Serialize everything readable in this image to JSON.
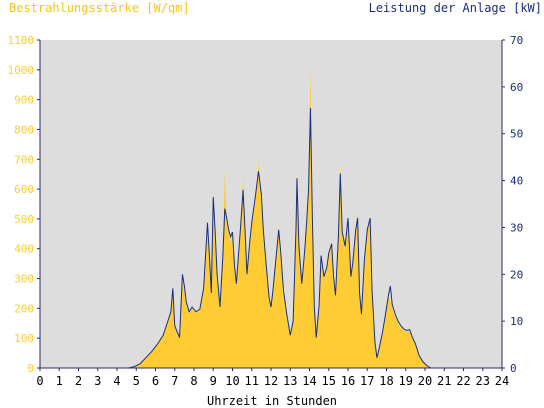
{
  "chart_data": {
    "type": "area",
    "title": "",
    "left_axis_title": "Bestrahlungsstärke [W/qm]",
    "right_axis_title": "Leistung der Anlage [kW]",
    "xlabel": "Uhrzeit in Stunden",
    "x_ticks": [
      "0",
      "1",
      "2",
      "3",
      "4",
      "5",
      "6",
      "7",
      "8",
      "9",
      "10",
      "11",
      "12",
      "13",
      "14",
      "15",
      "16",
      "17",
      "18",
      "19",
      "20",
      "21",
      "22",
      "23",
      "24"
    ],
    "xlim": [
      0,
      24
    ],
    "y_left_ticks": [
      "0",
      "100",
      "200",
      "300",
      "400",
      "500",
      "600",
      "700",
      "800",
      "900",
      "1000",
      "1100"
    ],
    "ylim_left": [
      0,
      1100
    ],
    "y_right_ticks": [
      "0",
      "10",
      "20",
      "30",
      "40",
      "50",
      "60",
      "70"
    ],
    "ylim_right": [
      0,
      70
    ],
    "grid": false,
    "series": [
      {
        "name": "Bestrahlungsstärke [W/qm]",
        "axis": "left",
        "color": "#ffcc33",
        "style": "filled-area",
        "points": [
          [
            0,
            0
          ],
          [
            4.6,
            0
          ],
          [
            4.9,
            5
          ],
          [
            5.2,
            15
          ],
          [
            5.5,
            35
          ],
          [
            5.8,
            55
          ],
          [
            6.1,
            80
          ],
          [
            6.4,
            110
          ],
          [
            6.6,
            150
          ],
          [
            6.8,
            190
          ],
          [
            6.9,
            255
          ],
          [
            7.0,
            140
          ],
          [
            7.1,
            120
          ],
          [
            7.25,
            100
          ],
          [
            7.4,
            290
          ],
          [
            7.5,
            255
          ],
          [
            7.6,
            210
          ],
          [
            7.75,
            180
          ],
          [
            7.9,
            200
          ],
          [
            8.1,
            185
          ],
          [
            8.3,
            190
          ],
          [
            8.5,
            260
          ],
          [
            8.7,
            470
          ],
          [
            8.8,
            360
          ],
          [
            8.9,
            250
          ],
          [
            9.0,
            580
          ],
          [
            9.1,
            450
          ],
          [
            9.2,
            300
          ],
          [
            9.35,
            200
          ],
          [
            9.5,
            380
          ],
          [
            9.6,
            660
          ],
          [
            9.7,
            500
          ],
          [
            9.8,
            450
          ],
          [
            9.9,
            420
          ],
          [
            10.0,
            460
          ],
          [
            10.1,
            340
          ],
          [
            10.2,
            280
          ],
          [
            10.4,
            450
          ],
          [
            10.55,
            640
          ],
          [
            10.65,
            450
          ],
          [
            10.75,
            300
          ],
          [
            10.9,
            420
          ],
          [
            11.0,
            480
          ],
          [
            11.2,
            560
          ],
          [
            11.35,
            690
          ],
          [
            11.5,
            560
          ],
          [
            11.6,
            450
          ],
          [
            11.75,
            340
          ],
          [
            11.9,
            230
          ],
          [
            12.0,
            200
          ],
          [
            12.1,
            250
          ],
          [
            12.25,
            350
          ],
          [
            12.4,
            470
          ],
          [
            12.5,
            380
          ],
          [
            12.65,
            250
          ],
          [
            12.8,
            180
          ],
          [
            13.0,
            110
          ],
          [
            13.15,
            160
          ],
          [
            13.3,
            460
          ],
          [
            13.35,
            640
          ],
          [
            13.45,
            400
          ],
          [
            13.6,
            280
          ],
          [
            13.75,
            380
          ],
          [
            13.85,
            480
          ],
          [
            13.95,
            600
          ],
          [
            14.05,
            1010
          ],
          [
            14.15,
            500
          ],
          [
            14.25,
            200
          ],
          [
            14.35,
            100
          ],
          [
            14.5,
            210
          ],
          [
            14.6,
            370
          ],
          [
            14.75,
            300
          ],
          [
            14.9,
            330
          ],
          [
            15.0,
            380
          ],
          [
            15.15,
            410
          ],
          [
            15.25,
            300
          ],
          [
            15.35,
            240
          ],
          [
            15.5,
            440
          ],
          [
            15.6,
            690
          ],
          [
            15.7,
            450
          ],
          [
            15.85,
            400
          ],
          [
            16.0,
            500
          ],
          [
            16.15,
            300
          ],
          [
            16.25,
            350
          ],
          [
            16.4,
            460
          ],
          [
            16.5,
            530
          ],
          [
            16.6,
            250
          ],
          [
            16.7,
            180
          ],
          [
            16.85,
            360
          ],
          [
            17.0,
            460
          ],
          [
            17.15,
            500
          ],
          [
            17.25,
            260
          ],
          [
            17.4,
            90
          ],
          [
            17.5,
            35
          ],
          [
            17.6,
            60
          ],
          [
            17.8,
            120
          ],
          [
            17.95,
            180
          ],
          [
            18.1,
            240
          ],
          [
            18.2,
            230
          ],
          [
            18.3,
            200
          ],
          [
            18.45,
            175
          ],
          [
            18.6,
            150
          ],
          [
            18.75,
            135
          ],
          [
            18.9,
            125
          ],
          [
            19.05,
            120
          ],
          [
            19.2,
            125
          ],
          [
            19.35,
            100
          ],
          [
            19.5,
            80
          ],
          [
            19.7,
            40
          ],
          [
            19.9,
            20
          ],
          [
            20.1,
            8
          ],
          [
            20.3,
            0
          ],
          [
            24,
            0
          ]
        ]
      },
      {
        "name": "Leistung der Anlage [kW]",
        "axis": "right",
        "color": "#1a2f7a",
        "style": "line",
        "points": [
          [
            0,
            0
          ],
          [
            4.6,
            0
          ],
          [
            4.9,
            0.3
          ],
          [
            5.2,
            0.9
          ],
          [
            5.5,
            2.2
          ],
          [
            5.8,
            3.5
          ],
          [
            6.1,
            5.1
          ],
          [
            6.4,
            7.0
          ],
          [
            6.6,
            9.5
          ],
          [
            6.8,
            12.0
          ],
          [
            6.9,
            17.0
          ],
          [
            7.0,
            9.0
          ],
          [
            7.1,
            8.0
          ],
          [
            7.25,
            6.5
          ],
          [
            7.4,
            20.0
          ],
          [
            7.5,
            17.5
          ],
          [
            7.6,
            14.0
          ],
          [
            7.75,
            12.0
          ],
          [
            7.9,
            13.0
          ],
          [
            8.1,
            12.0
          ],
          [
            8.3,
            12.5
          ],
          [
            8.5,
            17.0
          ],
          [
            8.7,
            31.0
          ],
          [
            8.8,
            24.0
          ],
          [
            8.9,
            16.0
          ],
          [
            9.0,
            36.5
          ],
          [
            9.1,
            29.0
          ],
          [
            9.2,
            20.0
          ],
          [
            9.35,
            13.0
          ],
          [
            9.5,
            24.0
          ],
          [
            9.6,
            34.0
          ],
          [
            9.7,
            32.0
          ],
          [
            9.8,
            29.5
          ],
          [
            9.9,
            28.0
          ],
          [
            10.0,
            29.0
          ],
          [
            10.1,
            22.0
          ],
          [
            10.2,
            18.0
          ],
          [
            10.4,
            29.0
          ],
          [
            10.55,
            38.0
          ],
          [
            10.65,
            29.5
          ],
          [
            10.75,
            20.0
          ],
          [
            10.9,
            27.0
          ],
          [
            11.0,
            31.0
          ],
          [
            11.2,
            37.0
          ],
          [
            11.35,
            42.0
          ],
          [
            11.5,
            37.0
          ],
          [
            11.6,
            29.5
          ],
          [
            11.75,
            22.0
          ],
          [
            11.9,
            15.0
          ],
          [
            12.0,
            13.0
          ],
          [
            12.1,
            16.5
          ],
          [
            12.25,
            23.0
          ],
          [
            12.4,
            29.5
          ],
          [
            12.5,
            25.0
          ],
          [
            12.65,
            16.5
          ],
          [
            12.8,
            12.0
          ],
          [
            13.0,
            7.0
          ],
          [
            13.15,
            10.0
          ],
          [
            13.3,
            30.0
          ],
          [
            13.35,
            40.5
          ],
          [
            13.45,
            26.0
          ],
          [
            13.6,
            18.0
          ],
          [
            13.75,
            25.0
          ],
          [
            13.85,
            31.0
          ],
          [
            13.95,
            38.0
          ],
          [
            14.05,
            55.5
          ],
          [
            14.15,
            32.0
          ],
          [
            14.25,
            13.0
          ],
          [
            14.35,
            6.5
          ],
          [
            14.5,
            13.5
          ],
          [
            14.6,
            24.0
          ],
          [
            14.75,
            19.5
          ],
          [
            14.9,
            21.5
          ],
          [
            15.0,
            24.5
          ],
          [
            15.15,
            26.5
          ],
          [
            15.25,
            19.5
          ],
          [
            15.35,
            15.5
          ],
          [
            15.5,
            28.0
          ],
          [
            15.6,
            41.5
          ],
          [
            15.7,
            29.0
          ],
          [
            15.85,
            26.0
          ],
          [
            16.0,
            32.0
          ],
          [
            16.15,
            19.5
          ],
          [
            16.25,
            22.5
          ],
          [
            16.4,
            29.5
          ],
          [
            16.5,
            32.0
          ],
          [
            16.6,
            16.0
          ],
          [
            16.7,
            11.5
          ],
          [
            16.85,
            23.0
          ],
          [
            17.0,
            29.5
          ],
          [
            17.15,
            32.0
          ],
          [
            17.25,
            16.5
          ],
          [
            17.4,
            5.5
          ],
          [
            17.5,
            2.2
          ],
          [
            17.6,
            3.8
          ],
          [
            17.8,
            7.8
          ],
          [
            17.95,
            11.5
          ],
          [
            18.1,
            15.5
          ],
          [
            18.2,
            17.5
          ],
          [
            18.3,
            13.5
          ],
          [
            18.45,
            11.5
          ],
          [
            18.6,
            10.0
          ],
          [
            18.75,
            9.0
          ],
          [
            18.9,
            8.3
          ],
          [
            19.05,
            8.0
          ],
          [
            19.2,
            8.2
          ],
          [
            19.35,
            6.5
          ],
          [
            19.5,
            5.2
          ],
          [
            19.7,
            2.6
          ],
          [
            19.9,
            1.3
          ],
          [
            20.1,
            0.5
          ],
          [
            20.3,
            0
          ],
          [
            24,
            0
          ]
        ]
      }
    ]
  }
}
